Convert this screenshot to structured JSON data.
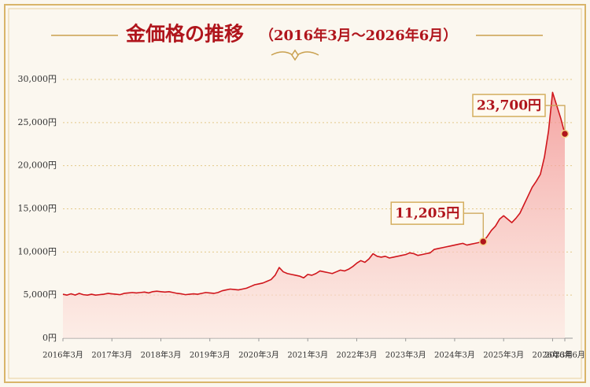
{
  "chart_data": {
    "type": "line",
    "title": "金価格の推移",
    "subtitle": "（2016年3月～2026年6月）",
    "color": "#d0161c",
    "x": [
      "2016-03",
      "2016-04",
      "2016-05",
      "2016-06",
      "2016-07",
      "2016-08",
      "2016-09",
      "2016-10",
      "2016-11",
      "2016-12",
      "2017-01",
      "2017-02",
      "2017-03",
      "2017-04",
      "2017-05",
      "2017-06",
      "2017-07",
      "2017-08",
      "2017-09",
      "2017-10",
      "2017-11",
      "2017-12",
      "2018-01",
      "2018-02",
      "2018-03",
      "2018-04",
      "2018-05",
      "2018-06",
      "2018-07",
      "2018-08",
      "2018-09",
      "2018-10",
      "2018-11",
      "2018-12",
      "2019-01",
      "2019-02",
      "2019-03",
      "2019-04",
      "2019-05",
      "2019-06",
      "2019-07",
      "2019-08",
      "2019-09",
      "2019-10",
      "2019-11",
      "2019-12",
      "2020-01",
      "2020-02",
      "2020-03",
      "2020-04",
      "2020-05",
      "2020-06",
      "2020-07",
      "2020-08",
      "2020-09",
      "2020-10",
      "2020-11",
      "2020-12",
      "2021-01",
      "2021-02",
      "2021-03",
      "2021-04",
      "2021-05",
      "2021-06",
      "2021-07",
      "2021-08",
      "2021-09",
      "2021-10",
      "2021-11",
      "2021-12",
      "2022-01",
      "2022-02",
      "2022-03",
      "2022-04",
      "2022-05",
      "2022-06",
      "2022-07",
      "2022-08",
      "2022-09",
      "2022-10",
      "2022-11",
      "2022-12",
      "2023-01",
      "2023-02",
      "2023-03",
      "2023-04",
      "2023-05",
      "2023-06",
      "2023-07",
      "2023-08",
      "2023-09",
      "2023-10",
      "2023-11",
      "2023-12",
      "2024-01",
      "2024-02",
      "2024-03",
      "2024-04",
      "2024-05",
      "2024-06",
      "2024-07",
      "2024-08",
      "2024-09",
      "2024-10",
      "2024-11",
      "2024-12",
      "2025-01",
      "2025-02",
      "2025-03",
      "2025-04",
      "2025-05",
      "2025-06",
      "2025-07",
      "2025-08",
      "2025-09",
      "2025-10",
      "2025-11",
      "2025-12",
      "2026-01",
      "2026-02",
      "2026-03",
      "2026-04",
      "2026-05",
      "2026-06"
    ],
    "values": [
      5100,
      5000,
      5150,
      5000,
      5200,
      5050,
      5000,
      5100,
      5000,
      5050,
      5100,
      5200,
      5150,
      5100,
      5050,
      5200,
      5250,
      5300,
      5250,
      5300,
      5350,
      5250,
      5400,
      5450,
      5400,
      5350,
      5400,
      5300,
      5200,
      5150,
      5050,
      5100,
      5150,
      5100,
      5200,
      5300,
      5250,
      5200,
      5300,
      5500,
      5600,
      5700,
      5650,
      5600,
      5700,
      5800,
      6000,
      6200,
      6300,
      6400,
      6600,
      6800,
      7300,
      8200,
      7700,
      7500,
      7400,
      7300,
      7200,
      7000,
      7400,
      7300,
      7500,
      7800,
      7700,
      7600,
      7500,
      7700,
      7900,
      7800,
      8000,
      8300,
      8700,
      9000,
      8800,
      9200,
      9800,
      9500,
      9400,
      9500,
      9300,
      9400,
      9500,
      9600,
      9700,
      9900,
      9800,
      9600,
      9700,
      9800,
      9900,
      10300,
      10400,
      10500,
      10600,
      10700,
      10800,
      10900,
      11000,
      10800,
      10900,
      11000,
      11100,
      11205,
      11800,
      12500,
      13000,
      13800,
      14200,
      13800,
      13400,
      13900,
      14500,
      15500,
      16500,
      17500,
      18200,
      19000,
      21000,
      24000,
      28500,
      27000,
      25500,
      23700
    ],
    "value_labels": [
      null,
      null,
      null,
      null,
      null,
      null,
      null,
      null,
      null,
      null,
      null,
      null,
      null,
      null,
      null,
      null,
      null,
      null,
      null,
      null,
      null,
      null,
      null,
      null,
      null,
      null,
      null,
      null,
      null,
      null,
      null,
      null,
      null,
      null,
      null,
      null,
      null,
      null,
      null,
      null,
      null,
      null,
      null,
      null,
      null,
      null,
      null,
      null,
      null,
      null,
      null,
      null,
      null,
      null,
      null,
      null,
      null,
      null,
      null,
      null,
      null,
      null,
      null,
      null,
      null,
      null,
      null,
      null,
      null,
      null,
      null,
      null,
      null,
      null,
      null,
      null,
      null,
      null,
      null,
      null,
      null,
      null,
      null,
      null,
      null,
      null,
      null,
      null,
      null,
      null,
      null,
      null,
      null,
      null,
      null,
      null,
      null,
      null,
      null,
      null,
      null,
      null,
      null,
      "11,205円",
      null,
      null,
      null,
      null,
      null,
      null,
      null,
      null,
      null,
      null,
      null,
      null,
      null,
      null,
      null,
      null,
      null,
      null,
      null,
      "23,700円"
    ],
    "ylim": [
      0,
      30000
    ],
    "yticks": [
      {
        "value": 0,
        "label": "0円"
      },
      {
        "value": 5000,
        "label": "5,000円"
      },
      {
        "value": 10000,
        "label": "10,000円"
      },
      {
        "value": 15000,
        "label": "15,000円"
      },
      {
        "value": 20000,
        "label": "20,000円"
      },
      {
        "value": 25000,
        "label": "25,000円"
      },
      {
        "value": 30000,
        "label": "30,000円"
      }
    ],
    "xticks": [
      {
        "value": "2016-03",
        "label": "2016年3月"
      },
      {
        "value": "2017-03",
        "label": "2017年3月"
      },
      {
        "value": "2018-03",
        "label": "2018年3月"
      },
      {
        "value": "2019-03",
        "label": "2019年3月"
      },
      {
        "value": "2020-03",
        "label": "2020年3月"
      },
      {
        "value": "2021-03",
        "label": "2021年3月"
      },
      {
        "value": "2022-03",
        "label": "2022年3月"
      },
      {
        "value": "2023-03",
        "label": "2023年3月"
      },
      {
        "value": "2024-03",
        "label": "2024年3月"
      },
      {
        "value": "2025-03",
        "label": "2025年3月"
      },
      {
        "value": "2026-03",
        "label": "2026年3月"
      },
      {
        "value": "2026-06",
        "label": "2026年6月"
      }
    ],
    "grid": true
  }
}
